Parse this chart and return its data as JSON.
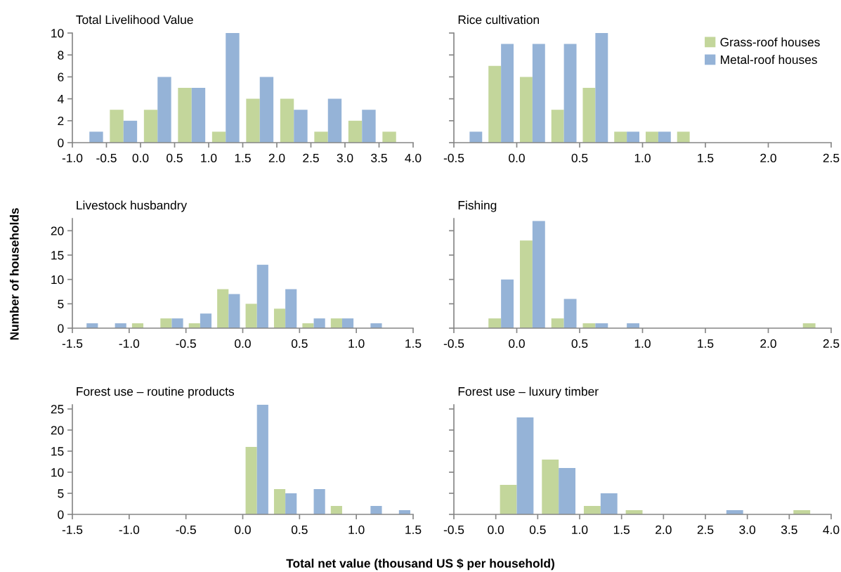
{
  "chart_data": [
    {
      "type": "bar",
      "title": "Total Livelihood Value",
      "x": [
        -0.75,
        -0.25,
        0.25,
        0.75,
        1.25,
        1.75,
        2.25,
        2.75,
        3.25,
        3.75
      ],
      "xlim": [
        -1.0,
        4.0
      ],
      "xticks": [
        {
          "value": -1.0,
          "label": "-1.0"
        },
        {
          "value": -0.5,
          "label": "-0.5"
        },
        {
          "value": 0.0,
          "label": "0.0"
        },
        {
          "value": 0.5,
          "label": "0.5"
        },
        {
          "value": 1.0,
          "label": "1.0"
        },
        {
          "value": 1.5,
          "label": "1.5"
        },
        {
          "value": 2.0,
          "label": "2.0"
        },
        {
          "value": 2.5,
          "label": "2.5"
        },
        {
          "value": 3.0,
          "label": "3.0"
        },
        {
          "value": 3.5,
          "label": "3.5"
        },
        {
          "value": 4.0,
          "label": "4.0"
        }
      ],
      "ylim": [
        0,
        10
      ],
      "yticks": [
        0,
        2,
        4,
        6,
        8,
        10
      ],
      "grid": false,
      "series": [
        {
          "color": "#c3d69b",
          "values": [
            0,
            3,
            3,
            5,
            1,
            4,
            4,
            1,
            2,
            1
          ]
        },
        {
          "color": "#95b3d7",
          "values": [
            1,
            2,
            6,
            5,
            10,
            6,
            3,
            4,
            3,
            0
          ]
        }
      ]
    },
    {
      "type": "bar",
      "title": "Rice cultivation",
      "x": [
        -0.375,
        -0.125,
        0.125,
        0.375,
        0.625,
        0.875,
        1.125,
        1.375
      ],
      "xlim": [
        -0.5,
        2.5
      ],
      "xticks": [
        {
          "value": -0.5,
          "label": "-0.5"
        },
        {
          "value": 0.0,
          "label": "0.0"
        },
        {
          "value": 0.5,
          "label": "0.5"
        },
        {
          "value": 1.0,
          "label": "1.0"
        },
        {
          "value": 1.5,
          "label": "1.5"
        },
        {
          "value": 2.0,
          "label": "2.0"
        },
        {
          "value": 2.5,
          "label": "2.5"
        }
      ],
      "ylim": [
        0,
        10
      ],
      "yticks": [
        0,
        2,
        4,
        6,
        8,
        10
      ],
      "tick_labels": "x",
      "grid": false,
      "legend": "top right",
      "series": [
        {
          "name": "Grass-roof houses",
          "color": "#c3d69b",
          "values": [
            0,
            7,
            6,
            3,
            5,
            1,
            1,
            1
          ]
        },
        {
          "name": "Metal-roof houses",
          "color": "#95b3d7",
          "values": [
            1,
            9,
            9,
            9,
            10,
            1,
            1,
            0
          ]
        }
      ]
    },
    {
      "type": "bar",
      "title": "Livestock husbandry",
      "ylabel": "Number of households",
      "x": [
        -1.375,
        -1.125,
        -0.875,
        -0.625,
        -0.375,
        -0.125,
        0.125,
        0.375,
        0.625,
        0.875,
        1.125
      ],
      "xlim": [
        -1.5,
        1.5
      ],
      "xticks": [
        {
          "value": -1.5,
          "label": "-1.5"
        },
        {
          "value": -1.0,
          "label": "-1.0"
        },
        {
          "value": -0.5,
          "label": "-0.5"
        },
        {
          "value": 0.0,
          "label": "0.0"
        },
        {
          "value": 0.5,
          "label": "0.5"
        },
        {
          "value": 1.0,
          "label": "1.0"
        },
        {
          "value": 1.5,
          "label": "1.5"
        }
      ],
      "ylim": [
        0,
        22.5
      ],
      "yticks": [
        0,
        5,
        10,
        15,
        20
      ],
      "grid": false,
      "series": [
        {
          "color": "#c3d69b",
          "values": [
            0,
            0,
            1,
            2,
            1,
            8,
            5,
            4,
            1,
            2,
            0
          ]
        },
        {
          "color": "#95b3d7",
          "values": [
            1,
            1,
            0,
            2,
            3,
            7,
            13,
            8,
            2,
            2,
            1
          ]
        }
      ]
    },
    {
      "type": "bar",
      "title": "Fishing",
      "x": [
        -0.125,
        0.125,
        0.375,
        0.625,
        0.875,
        1.125,
        1.375,
        1.625,
        1.875,
        2.125,
        2.375
      ],
      "xlim": [
        -0.5,
        2.5
      ],
      "xticks": [
        {
          "value": -0.5,
          "label": "-0.5"
        },
        {
          "value": 0.0,
          "label": "0.0"
        },
        {
          "value": 0.5,
          "label": "0.5"
        },
        {
          "value": 1.0,
          "label": "1.0"
        },
        {
          "value": 1.5,
          "label": "1.5"
        },
        {
          "value": 2.0,
          "label": "2.0"
        },
        {
          "value": 2.5,
          "label": "2.5"
        }
      ],
      "ylim": [
        0,
        22.5
      ],
      "yticks": [
        0,
        5,
        10,
        15,
        20
      ],
      "tick_labels": "x",
      "grid": false,
      "series": [
        {
          "color": "#c3d69b",
          "values": [
            2,
            18,
            2,
            1,
            0,
            0,
            0,
            0,
            0,
            0,
            1
          ]
        },
        {
          "color": "#95b3d7",
          "values": [
            10,
            22,
            6,
            1,
            1,
            0,
            0,
            0,
            0,
            0,
            0
          ]
        }
      ]
    },
    {
      "type": "bar",
      "title": "Forest use – routine products",
      "xlabel": "Total net value (thousand US $ per household)",
      "x": [
        0.125,
        0.375,
        0.625,
        0.875,
        1.125,
        1.375
      ],
      "xlim": [
        -1.5,
        1.5
      ],
      "xticks": [
        {
          "value": -1.5,
          "label": "-1.5"
        },
        {
          "value": -1.0,
          "label": "-1.0"
        },
        {
          "value": -0.5,
          "label": "-0.5"
        },
        {
          "value": 0.0,
          "label": "0.0"
        },
        {
          "value": 0.5,
          "label": "0.5"
        },
        {
          "value": 1.0,
          "label": "1.0"
        },
        {
          "value": 1.5,
          "label": "1.5"
        }
      ],
      "ylim": [
        0,
        26
      ],
      "yticks": [
        0,
        5,
        10,
        15,
        20,
        25
      ],
      "grid": false,
      "series": [
        {
          "color": "#c3d69b",
          "values": [
            16,
            6,
            0,
            2,
            0,
            0
          ]
        },
        {
          "color": "#95b3d7",
          "values": [
            26,
            5,
            6,
            0,
            2,
            1
          ]
        }
      ]
    },
    {
      "type": "bar",
      "title": "Forest use – luxury timber",
      "x": [
        0.25,
        0.75,
        1.25,
        1.75,
        2.25,
        2.75,
        3.25,
        3.75
      ],
      "xlim": [
        -0.5,
        4.0
      ],
      "xticks": [
        {
          "value": -0.5,
          "label": "-0.5"
        },
        {
          "value": 0.0,
          "label": "0.0"
        },
        {
          "value": 0.5,
          "label": "0.5"
        },
        {
          "value": 1.0,
          "label": "1.0"
        },
        {
          "value": 1.5,
          "label": "1.5"
        },
        {
          "value": 2.0,
          "label": "2.0"
        },
        {
          "value": 2.5,
          "label": "2.5"
        },
        {
          "value": 3.0,
          "label": "3.0"
        },
        {
          "value": 3.5,
          "label": "3.5"
        },
        {
          "value": 4.0,
          "label": "4.0"
        }
      ],
      "ylim": [
        0,
        26
      ],
      "yticks": [
        0,
        5,
        10,
        15,
        20,
        25
      ],
      "tick_labels": "x",
      "grid": false,
      "series": [
        {
          "color": "#c3d69b",
          "values": [
            7,
            13,
            2,
            1,
            0,
            0,
            0,
            1
          ]
        },
        {
          "color": "#95b3d7",
          "values": [
            23,
            11,
            5,
            0,
            0,
            1,
            0,
            0
          ]
        }
      ]
    }
  ]
}
